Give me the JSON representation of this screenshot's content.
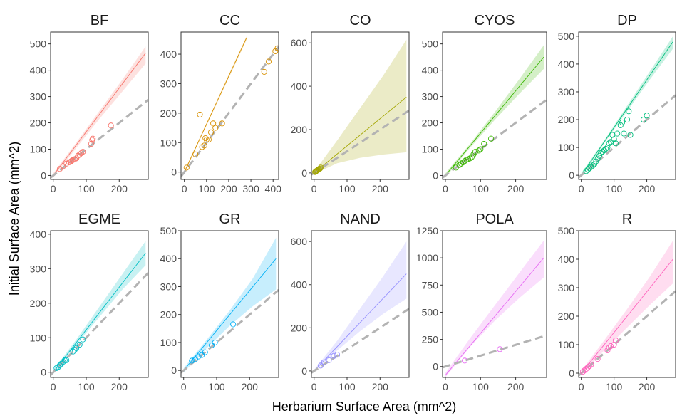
{
  "figure": {
    "xlabel": "Herbarium Surface Area (mm^2)",
    "ylabel": "Initial Surface Area (mm^2)"
  },
  "chart_data": [
    {
      "type": "scatter",
      "title": "BF",
      "color": "#F8766D",
      "xlim": [
        -8,
        288
      ],
      "ylim": [
        -15,
        545
      ],
      "xticks": [
        0,
        100,
        200
      ],
      "xtick_labels": [
        "0",
        "100",
        "200"
      ],
      "yticks": [
        0,
        100,
        200,
        300,
        400,
        500
      ],
      "ytick_labels": [
        "0",
        "100",
        "200",
        "300",
        "400",
        "500"
      ],
      "fit": {
        "x": [
          0,
          280
        ],
        "y": [
          0,
          465
        ]
      },
      "ci": {
        "x": [
          0,
          70,
          140,
          210,
          280
        ],
        "lower": [
          -8,
          105,
          215,
          320,
          425
        ],
        "upper": [
          8,
          125,
          245,
          365,
          490
        ]
      },
      "identity": {
        "x": [
          -8,
          288
        ],
        "y": [
          -8,
          288
        ]
      },
      "points": {
        "x": [
          20,
          30,
          40,
          48,
          52,
          55,
          58,
          62,
          65,
          70,
          75,
          80,
          85,
          90,
          115,
          118,
          120,
          175
        ],
        "y": [
          25,
          35,
          45,
          50,
          52,
          55,
          58,
          60,
          62,
          65,
          75,
          80,
          85,
          90,
          120,
          135,
          140,
          190
        ]
      }
    },
    {
      "type": "scatter",
      "title": "CC",
      "color": "#D89000",
      "xlim": [
        -15,
        425
      ],
      "ylim": [
        -25,
        475
      ],
      "xticks": [
        0,
        100,
        200,
        300,
        400
      ],
      "xtick_labels": [
        "0",
        "100",
        "200",
        "300",
        "400"
      ],
      "yticks": [
        0,
        100,
        200,
        300,
        400
      ],
      "ytick_labels": [
        "0",
        "100",
        "200",
        "300",
        "400"
      ],
      "fit": {
        "x": [
          0,
          280
        ],
        "y": [
          0,
          455
        ]
      },
      "ci": {
        "x": [
          0,
          70,
          140,
          210,
          280
        ],
        "lower": [
          -5,
          110,
          222,
          335,
          448
        ],
        "upper": [
          5,
          118,
          232,
          347,
          460
        ]
      },
      "identity": {
        "x": [
          -15,
          425
        ],
        "y": [
          -15,
          425
        ]
      },
      "points": {
        "x": [
          10,
          50,
          70,
          80,
          90,
          95,
          100,
          110,
          120,
          130,
          140,
          170,
          360,
          380,
          410,
          420
        ],
        "y": [
          15,
          60,
          195,
          85,
          90,
          115,
          110,
          110,
          135,
          165,
          150,
          165,
          340,
          375,
          410,
          420
        ]
      }
    },
    {
      "type": "scatter",
      "title": "CO",
      "color": "#A3A500",
      "xlim": [
        -8,
        288
      ],
      "ylim": [
        -30,
        650
      ],
      "xticks": [
        0,
        100,
        200
      ],
      "xtick_labels": [
        "0",
        "100",
        "200"
      ],
      "yticks": [
        0,
        200,
        400,
        600
      ],
      "ytick_labels": [
        "0",
        "200",
        "400",
        "600"
      ],
      "fit": {
        "x": [
          0,
          280
        ],
        "y": [
          0,
          350
        ]
      },
      "ci": {
        "x": [
          0,
          70,
          140,
          210,
          280
        ],
        "lower": [
          -5,
          45,
          70,
          85,
          95
        ],
        "upper": [
          5,
          150,
          300,
          450,
          615
        ]
      },
      "identity": {
        "x": [
          -8,
          288
        ],
        "y": [
          -8,
          288
        ]
      },
      "points": {
        "x": [
          3,
          5,
          6,
          8,
          10,
          12,
          15,
          18,
          20
        ],
        "y": [
          4,
          6,
          8,
          10,
          12,
          15,
          18,
          20,
          25
        ]
      }
    },
    {
      "type": "scatter",
      "title": "CYOS",
      "color": "#39B600",
      "xlim": [
        -8,
        288
      ],
      "ylim": [
        -15,
        545
      ],
      "xticks": [
        0,
        100,
        200
      ],
      "xtick_labels": [
        "0",
        "100",
        "200"
      ],
      "yticks": [
        0,
        100,
        200,
        300,
        400,
        500
      ],
      "ytick_labels": [
        "0",
        "100",
        "200",
        "300",
        "400",
        "500"
      ],
      "fit": {
        "x": [
          0,
          280
        ],
        "y": [
          0,
          450
        ]
      },
      "ci": {
        "x": [
          0,
          70,
          140,
          210,
          280
        ],
        "lower": [
          -8,
          105,
          210,
          310,
          405
        ],
        "upper": [
          8,
          120,
          240,
          365,
          495
        ]
      },
      "identity": {
        "x": [
          -8,
          288
        ],
        "y": [
          -8,
          288
        ]
      },
      "points": {
        "x": [
          30,
          40,
          45,
          50,
          55,
          60,
          65,
          70,
          75,
          80,
          85,
          95,
          100,
          110,
          130
        ],
        "y": [
          30,
          40,
          45,
          50,
          55,
          60,
          62,
          65,
          70,
          80,
          90,
          95,
          100,
          120,
          140
        ]
      }
    },
    {
      "type": "scatter",
      "title": "DP",
      "color": "#00BF7D",
      "xlim": [
        -8,
        288
      ],
      "ylim": [
        -15,
        515
      ],
      "xticks": [
        0,
        100,
        200
      ],
      "xtick_labels": [
        "0",
        "100",
        "200"
      ],
      "yticks": [
        0,
        100,
        200,
        300,
        400,
        500
      ],
      "ytick_labels": [
        "0",
        "100",
        "200",
        "300",
        "400",
        "500"
      ],
      "fit": {
        "x": [
          0,
          280
        ],
        "y": [
          0,
          480
        ]
      },
      "ci": {
        "x": [
          0,
          70,
          140,
          210,
          280
        ],
        "lower": [
          -8,
          115,
          230,
          345,
          455
        ],
        "upper": [
          8,
          125,
          250,
          375,
          500
        ]
      },
      "identity": {
        "x": [
          -8,
          288
        ],
        "y": [
          -8,
          288
        ]
      },
      "points": {
        "x": [
          15,
          20,
          25,
          30,
          35,
          40,
          45,
          50,
          55,
          60,
          65,
          70,
          75,
          80,
          85,
          90,
          95,
          100,
          105,
          110,
          120,
          125,
          130,
          140,
          145,
          150,
          190,
          200
        ],
        "y": [
          15,
          20,
          25,
          30,
          35,
          40,
          50,
          60,
          70,
          80,
          85,
          90,
          95,
          100,
          115,
          120,
          145,
          130,
          115,
          150,
          180,
          190,
          150,
          200,
          230,
          145,
          200,
          215
        ]
      }
    },
    {
      "type": "scatter",
      "title": "EGME",
      "color": "#00BFC4",
      "xlim": [
        -8,
        288
      ],
      "ylim": [
        -15,
        410
      ],
      "xticks": [
        0,
        100,
        200
      ],
      "xtick_labels": [
        "0",
        "100",
        "200"
      ],
      "yticks": [
        0,
        100,
        200,
        300,
        400
      ],
      "ytick_labels": [
        "0",
        "100",
        "200",
        "300",
        "400"
      ],
      "fit": {
        "x": [
          0,
          280
        ],
        "y": [
          0,
          345
        ]
      },
      "ci": {
        "x": [
          0,
          70,
          140,
          210,
          280
        ],
        "lower": [
          -5,
          80,
          160,
          240,
          310
        ],
        "upper": [
          5,
          95,
          190,
          285,
          380
        ]
      },
      "identity": {
        "x": [
          -8,
          288
        ],
        "y": [
          -8,
          288
        ]
      },
      "points": {
        "x": [
          10,
          15,
          20,
          25,
          30,
          35,
          40,
          60,
          65,
          70,
          80,
          90
        ],
        "y": [
          12,
          15,
          20,
          25,
          30,
          35,
          35,
          60,
          65,
          70,
          80,
          95
        ]
      }
    },
    {
      "type": "scatter",
      "title": "GR",
      "color": "#00B0F6",
      "xlim": [
        -8,
        288
      ],
      "ylim": [
        -25,
        500
      ],
      "xticks": [
        0,
        100,
        200
      ],
      "xtick_labels": [
        "0",
        "100",
        "200"
      ],
      "yticks": [
        0,
        100,
        200,
        300,
        400,
        500
      ],
      "ytick_labels": [
        "0",
        "100",
        "200",
        "300",
        "400",
        "500"
      ],
      "fit": {
        "x": [
          0,
          280
        ],
        "y": [
          0,
          400
        ]
      },
      "ci": {
        "x": [
          0,
          70,
          140,
          210,
          280
        ],
        "lower": [
          -8,
          80,
          160,
          230,
          290
        ],
        "upper": [
          8,
          110,
          215,
          330,
          475
        ]
      },
      "identity": {
        "x": [
          -8,
          288
        ],
        "y": [
          -8,
          288
        ]
      },
      "points": {
        "x": [
          25,
          35,
          45,
          55,
          65,
          85,
          95,
          150
        ],
        "y": [
          35,
          40,
          50,
          55,
          65,
          90,
          100,
          165
        ]
      }
    },
    {
      "type": "scatter",
      "title": "NAND",
      "color": "#9590FF",
      "xlim": [
        -8,
        288
      ],
      "ylim": [
        -30,
        650
      ],
      "xticks": [
        0,
        100,
        200
      ],
      "xtick_labels": [
        "0",
        "100",
        "200"
      ],
      "yticks": [
        0,
        200,
        400,
        600
      ],
      "ytick_labels": [
        "0",
        "200",
        "400",
        "600"
      ],
      "fit": {
        "x": [
          0,
          280
        ],
        "y": [
          0,
          450
        ]
      },
      "ci": {
        "x": [
          0,
          70,
          140,
          210,
          280
        ],
        "lower": [
          -5,
          95,
          185,
          265,
          335
        ],
        "upper": [
          5,
          140,
          290,
          440,
          600
        ]
      },
      "identity": {
        "x": [
          -8,
          288
        ],
        "y": [
          -8,
          288
        ]
      },
      "points": {
        "x": [
          20,
          30,
          45,
          60,
          70
        ],
        "y": [
          25,
          40,
          50,
          70,
          75
        ]
      }
    },
    {
      "type": "scatter",
      "title": "POLA",
      "color": "#E76BF3",
      "xlim": [
        -8,
        288
      ],
      "ylim": [
        -100,
        1250
      ],
      "xticks": [
        0,
        100,
        200
      ],
      "xtick_labels": [
        "0",
        "100",
        "200"
      ],
      "yticks": [
        0,
        250,
        500,
        750,
        1000,
        1250
      ],
      "ytick_labels": [
        "0",
        "250",
        "500",
        "750",
        "1000",
        "1250"
      ],
      "fit": {
        "x": [
          0,
          280
        ],
        "y": [
          -80,
          1000
        ]
      },
      "ci": {
        "x": [
          0,
          70,
          140,
          210,
          280
        ],
        "lower": [
          -100,
          180,
          420,
          630,
          820
        ],
        "upper": [
          -60,
          260,
          560,
          860,
          1160
        ]
      },
      "identity": {
        "x": [
          -8,
          288
        ],
        "y": [
          -8,
          288
        ]
      },
      "points": {
        "x": [
          55,
          155
        ],
        "y": [
          55,
          160
        ]
      }
    },
    {
      "type": "scatter",
      "title": "R",
      "color": "#FF62BC",
      "xlim": [
        -8,
        288
      ],
      "ylim": [
        -15,
        500
      ],
      "xticks": [
        0,
        100,
        200
      ],
      "xtick_labels": [
        "0",
        "100",
        "200"
      ],
      "yticks": [
        0,
        100,
        200,
        300,
        400,
        500
      ],
      "ytick_labels": [
        "0",
        "100",
        "200",
        "300",
        "400",
        "500"
      ],
      "fit": {
        "x": [
          0,
          280
        ],
        "y": [
          0,
          400
        ]
      },
      "ci": {
        "x": [
          0,
          70,
          140,
          210,
          280
        ],
        "lower": [
          -8,
          80,
          160,
          240,
          315
        ],
        "upper": [
          8,
          115,
          225,
          340,
          465
        ]
      },
      "identity": {
        "x": [
          -8,
          288
        ],
        "y": [
          -8,
          288
        ]
      },
      "points": {
        "x": [
          5,
          10,
          15,
          20,
          25,
          30,
          50,
          80,
          85,
          90,
          100,
          105
        ],
        "y": [
          5,
          10,
          15,
          20,
          25,
          30,
          50,
          80,
          90,
          95,
          100,
          115
        ]
      }
    }
  ]
}
